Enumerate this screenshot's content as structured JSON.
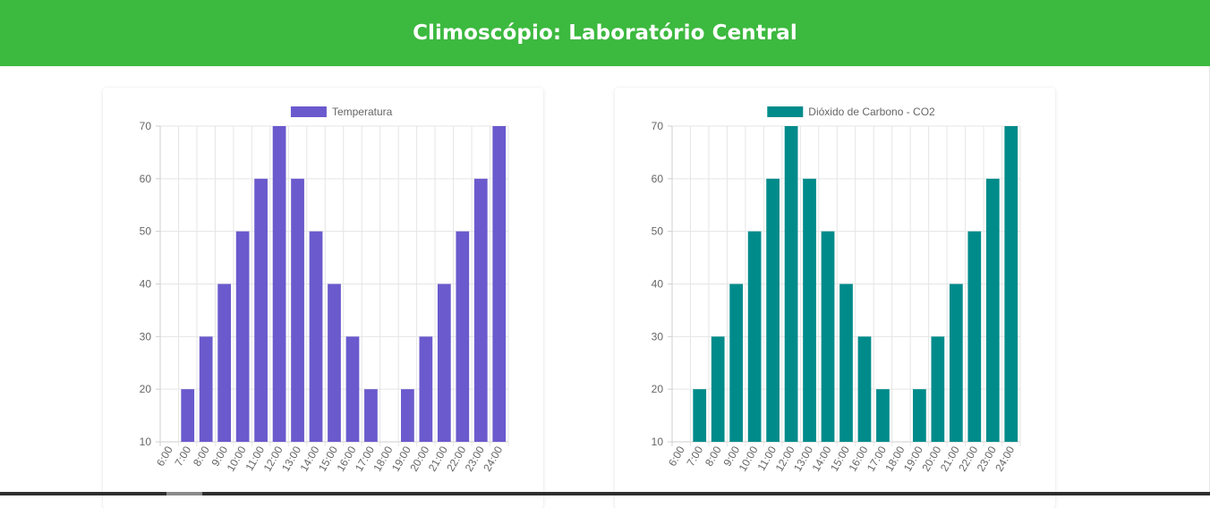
{
  "header": {
    "title": "Climoscópio: Laboratório Central",
    "background": "#3cb93f"
  },
  "chart_data": [
    {
      "type": "bar",
      "legend": "Temperatura",
      "color": "#6a5acd",
      "categories": [
        "6:00",
        "7:00",
        "8:00",
        "9:00",
        "10:00",
        "11:00",
        "12:00",
        "13:00",
        "14:00",
        "15:00",
        "16:00",
        "17:00",
        "18:00",
        "19:00",
        "20:00",
        "21:00",
        "22:00",
        "23:00",
        "24:00"
      ],
      "series": [
        {
          "name": "Temperatura",
          "values": [
            10,
            20,
            30,
            40,
            50,
            60,
            70,
            60,
            50,
            40,
            30,
            20,
            10,
            20,
            30,
            40,
            50,
            60,
            70
          ]
        }
      ],
      "yticks": [
        "10",
        "20",
        "30",
        "40",
        "50",
        "60",
        "70"
      ],
      "ylim": [
        10,
        70
      ],
      "grid": true,
      "legend_position": "top"
    },
    {
      "type": "bar",
      "legend": "Dióxido de Carbono - CO2",
      "color": "#008b8b",
      "categories": [
        "6:00",
        "7:00",
        "8:00",
        "9:00",
        "10:00",
        "11:00",
        "12:00",
        "13:00",
        "14:00",
        "15:00",
        "16:00",
        "17:00",
        "18:00",
        "19:00",
        "20:00",
        "21:00",
        "22:00",
        "23:00",
        "24:00"
      ],
      "series": [
        {
          "name": "Dióxido de Carbono - CO2",
          "values": [
            10,
            20,
            30,
            40,
            50,
            60,
            70,
            60,
            50,
            40,
            30,
            20,
            10,
            20,
            30,
            40,
            50,
            60,
            70
          ]
        }
      ],
      "yticks": [
        "10",
        "20",
        "30",
        "40",
        "50",
        "60",
        "70"
      ],
      "ylim": [
        10,
        70
      ],
      "grid": true,
      "legend_position": "top"
    }
  ]
}
